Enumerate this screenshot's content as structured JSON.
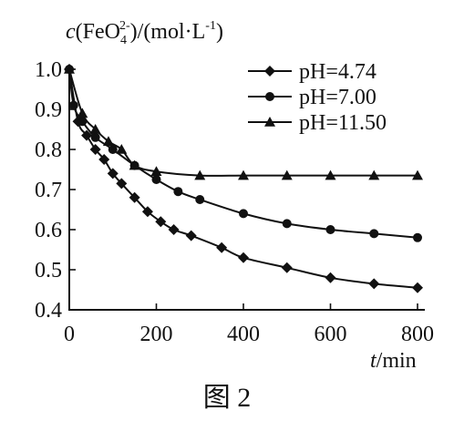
{
  "chart_data": {
    "type": "line",
    "ylabel_parts": {
      "italic": "c",
      "text1": "(FeO",
      "sup": "2-",
      "sub": "4",
      "text2": ")/(mol·L",
      "sup2": "-1",
      "text3": ")"
    },
    "xlabel_parts": {
      "italic": "t",
      "text": "/min"
    },
    "figure_caption": "图 2",
    "xlim": [
      0,
      800
    ],
    "ylim": [
      0.4,
      1.0
    ],
    "xticks": [
      0,
      200,
      400,
      600,
      800
    ],
    "yticks": [
      1.0,
      0.9,
      0.8,
      0.7,
      0.6,
      0.5,
      0.4
    ],
    "ytick_labels": [
      "1.0",
      "0.9",
      "0.8",
      "0.7",
      "0.6",
      "0.5",
      "0.4"
    ],
    "legend_position": "top-right",
    "series": [
      {
        "name": "pH=4.74",
        "marker": "diamond",
        "x": [
          0,
          20,
          40,
          60,
          80,
          100,
          120,
          150,
          180,
          210,
          240,
          280,
          350,
          400,
          500,
          600,
          700,
          800
        ],
        "y": [
          1.0,
          0.87,
          0.835,
          0.8,
          0.775,
          0.74,
          0.715,
          0.68,
          0.645,
          0.62,
          0.6,
          0.585,
          0.555,
          0.53,
          0.505,
          0.48,
          0.465,
          0.455
        ]
      },
      {
        "name": "pH=7.00",
        "marker": "circle",
        "x": [
          0,
          10,
          30,
          60,
          100,
          150,
          200,
          250,
          300,
          400,
          500,
          600,
          700,
          800
        ],
        "y": [
          1.0,
          0.91,
          0.87,
          0.83,
          0.8,
          0.76,
          0.725,
          0.695,
          0.675,
          0.64,
          0.615,
          0.6,
          0.59,
          0.58
        ]
      },
      {
        "name": "pH=11.50",
        "marker": "triangle",
        "x": [
          0,
          30,
          60,
          90,
          120,
          150,
          200,
          300,
          400,
          500,
          600,
          700,
          800
        ],
        "y": [
          1.0,
          0.89,
          0.85,
          0.82,
          0.8,
          0.76,
          0.745,
          0.735,
          0.735,
          0.735,
          0.735,
          0.735,
          0.735
        ]
      }
    ]
  }
}
